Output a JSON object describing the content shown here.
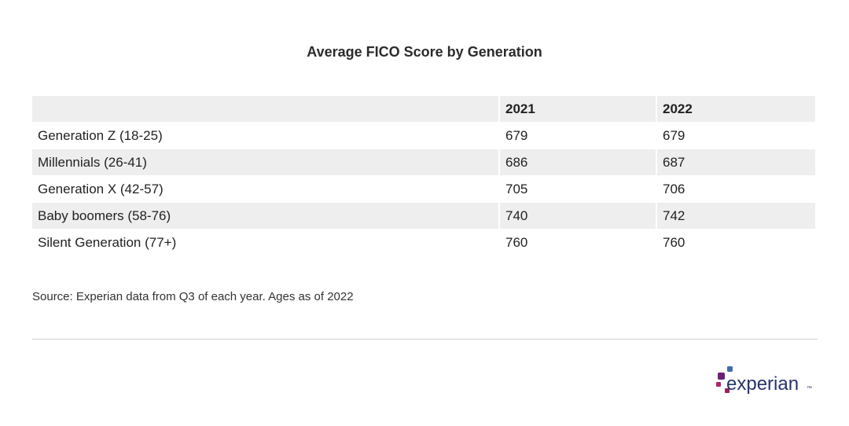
{
  "chart_data": {
    "type": "table",
    "title": "Average FICO Score by Generation",
    "columns": [
      "",
      "2021",
      "2022"
    ],
    "rows": [
      {
        "label": "Generation Z (18-25)",
        "values": [
          "679",
          "679"
        ]
      },
      {
        "label": "Millennials (26-41)",
        "values": [
          "686",
          "687"
        ]
      },
      {
        "label": "Generation X (42-57)",
        "values": [
          "705",
          "706"
        ]
      },
      {
        "label": "Baby boomers (58-76)",
        "values": [
          "740",
          "742"
        ]
      },
      {
        "label": "Silent Generation (77+)",
        "values": [
          "760",
          "760"
        ]
      }
    ],
    "source": "Source: Experian data from Q3 of each year. Ages as of 2022"
  },
  "brand": {
    "logo_text": "experian",
    "logo_tm": "™",
    "colors": {
      "text": "#222222",
      "row_shade": "#eeeeee",
      "logo_navy": "#26336b",
      "logo_purple": "#6d2077",
      "logo_magenta": "#b0246a",
      "logo_blue": "#426da9",
      "divider": "#cfcfcf"
    }
  }
}
